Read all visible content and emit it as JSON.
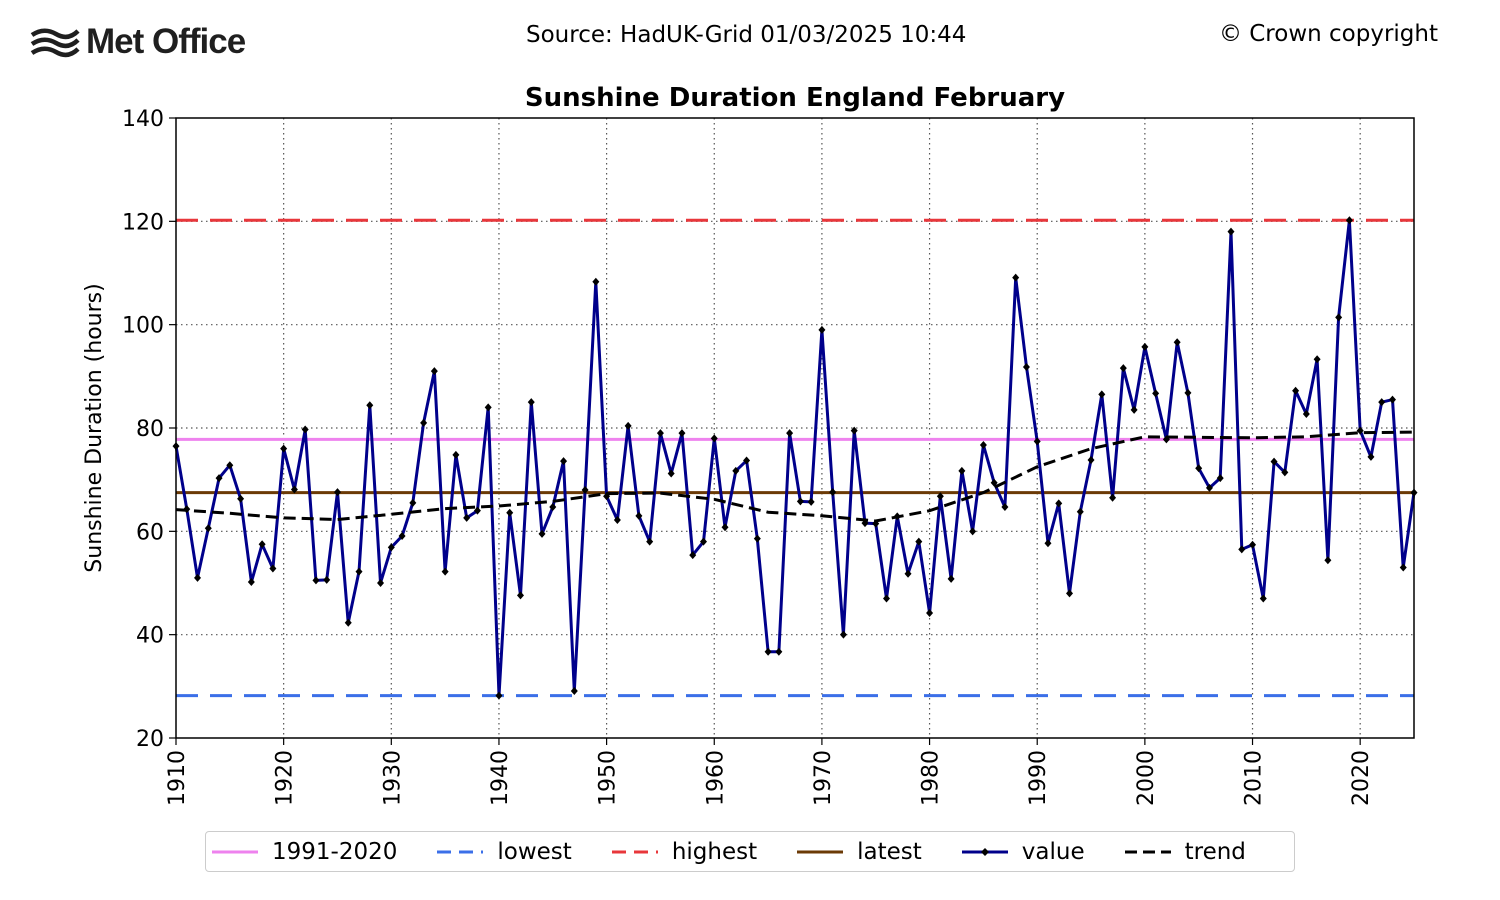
{
  "header": {
    "logo_text": "Met Office",
    "source": "Source: HadUK-Grid 01/03/2025 10:44",
    "copyright": "© Crown copyright"
  },
  "chart_data": {
    "type": "line",
    "title": "Sunshine Duration England February",
    "xlabel": "",
    "ylabel": "Sunshine Duration (hours)",
    "xlim": [
      1910,
      2025
    ],
    "ylim": [
      20,
      140
    ],
    "x_ticks": [
      1910,
      1920,
      1930,
      1940,
      1950,
      1960,
      1970,
      1980,
      1990,
      2000,
      2010,
      2020
    ],
    "y_ticks": [
      20,
      40,
      60,
      80,
      100,
      120,
      140
    ],
    "grid": true,
    "legend_position": "bottom",
    "reference_lines": [
      {
        "name": "1991-2020",
        "value": 77.8,
        "color": "#ee82ee",
        "style": "solid"
      },
      {
        "name": "lowest",
        "value": 28.2,
        "color": "#3b6fe8",
        "style": "dashed"
      },
      {
        "name": "highest",
        "value": 120.2,
        "color": "#e8373b",
        "style": "dashed"
      },
      {
        "name": "latest",
        "value": 67.5,
        "color": "#6b3a06",
        "style": "solid"
      }
    ],
    "series": [
      {
        "name": "value",
        "color": "#00008b",
        "x": [
          1910,
          1911,
          1912,
          1913,
          1914,
          1915,
          1916,
          1917,
          1918,
          1919,
          1920,
          1921,
          1922,
          1923,
          1924,
          1925,
          1926,
          1927,
          1928,
          1929,
          1930,
          1931,
          1932,
          1933,
          1934,
          1935,
          1936,
          1937,
          1938,
          1939,
          1940,
          1941,
          1942,
          1943,
          1944,
          1945,
          1946,
          1947,
          1948,
          1949,
          1950,
          1951,
          1952,
          1953,
          1954,
          1955,
          1956,
          1957,
          1958,
          1959,
          1960,
          1961,
          1962,
          1963,
          1964,
          1965,
          1966,
          1967,
          1968,
          1969,
          1970,
          1971,
          1972,
          1973,
          1974,
          1975,
          1976,
          1977,
          1978,
          1979,
          1980,
          1981,
          1982,
          1983,
          1984,
          1985,
          1986,
          1987,
          1988,
          1989,
          1990,
          1991,
          1992,
          1993,
          1994,
          1995,
          1996,
          1997,
          1998,
          1999,
          2000,
          2001,
          2002,
          2003,
          2004,
          2005,
          2006,
          2007,
          2008,
          2009,
          2010,
          2011,
          2012,
          2013,
          2014,
          2015,
          2016,
          2017,
          2018,
          2019,
          2020,
          2021,
          2022,
          2023,
          2024,
          2025
        ],
        "values": [
          76.5,
          64.3,
          51.0,
          60.6,
          70.3,
          72.8,
          66.3,
          50.2,
          57.5,
          52.8,
          76.0,
          68.1,
          79.7,
          50.5,
          50.6,
          67.6,
          42.3,
          52.2,
          84.4,
          50.0,
          56.9,
          59.1,
          65.5,
          81.0,
          91.0,
          52.2,
          74.8,
          62.6,
          64.0,
          84.0,
          28.2,
          63.6,
          47.6,
          85.0,
          59.5,
          64.7,
          73.6,
          29.1,
          68.0,
          108.3,
          66.8,
          62.2,
          80.4,
          63.0,
          58.0,
          79.0,
          71.2,
          79.0,
          55.4,
          58.0,
          78.0,
          60.8,
          71.7,
          73.7,
          58.6,
          36.7,
          36.7,
          79.0,
          65.8,
          65.7,
          99.0,
          67.6,
          40.0,
          79.5,
          61.6,
          61.5,
          47.0,
          62.9,
          51.8,
          58.0,
          44.2,
          66.8,
          50.8,
          71.7,
          60.0,
          76.7,
          69.4,
          64.7,
          109.1,
          91.8,
          77.4,
          57.7,
          65.4,
          48.0,
          63.8,
          73.8,
          86.5,
          66.5,
          91.6,
          83.5,
          95.7,
          86.7,
          77.8,
          96.6,
          86.8,
          72.2,
          68.4,
          70.3,
          118.0,
          56.5,
          57.4,
          47.0,
          73.5,
          71.4,
          87.2,
          82.7,
          93.3,
          54.4,
          101.4,
          120.2,
          79.5,
          74.4,
          85.0,
          85.5,
          53.0,
          67.5
        ]
      },
      {
        "name": "trend",
        "color": "#000000",
        "x": [
          1910,
          1915,
          1920,
          1925,
          1930,
          1935,
          1940,
          1945,
          1950,
          1955,
          1960,
          1965,
          1970,
          1975,
          1980,
          1985,
          1990,
          1995,
          2000,
          2005,
          2010,
          2015,
          2020,
          2025
        ],
        "values": [
          64.2,
          63.5,
          62.6,
          62.3,
          63.3,
          64.4,
          64.9,
          65.8,
          67.3,
          67.4,
          66.2,
          63.7,
          63.0,
          62.0,
          64.0,
          67.5,
          72.5,
          76.0,
          78.3,
          78.2,
          78.1,
          78.3,
          79.1,
          79.2
        ]
      }
    ]
  },
  "legend": {
    "items": [
      {
        "label": "1991-2020",
        "color": "#ee82ee",
        "style": "solid"
      },
      {
        "label": "lowest",
        "color": "#3b6fe8",
        "style": "dashed"
      },
      {
        "label": "highest",
        "color": "#e8373b",
        "style": "dashed"
      },
      {
        "label": "latest",
        "color": "#6b3a06",
        "style": "solid"
      },
      {
        "label": "value",
        "color": "#00008b",
        "style": "marker"
      },
      {
        "label": "trend",
        "color": "#000000",
        "style": "dashed"
      }
    ]
  }
}
